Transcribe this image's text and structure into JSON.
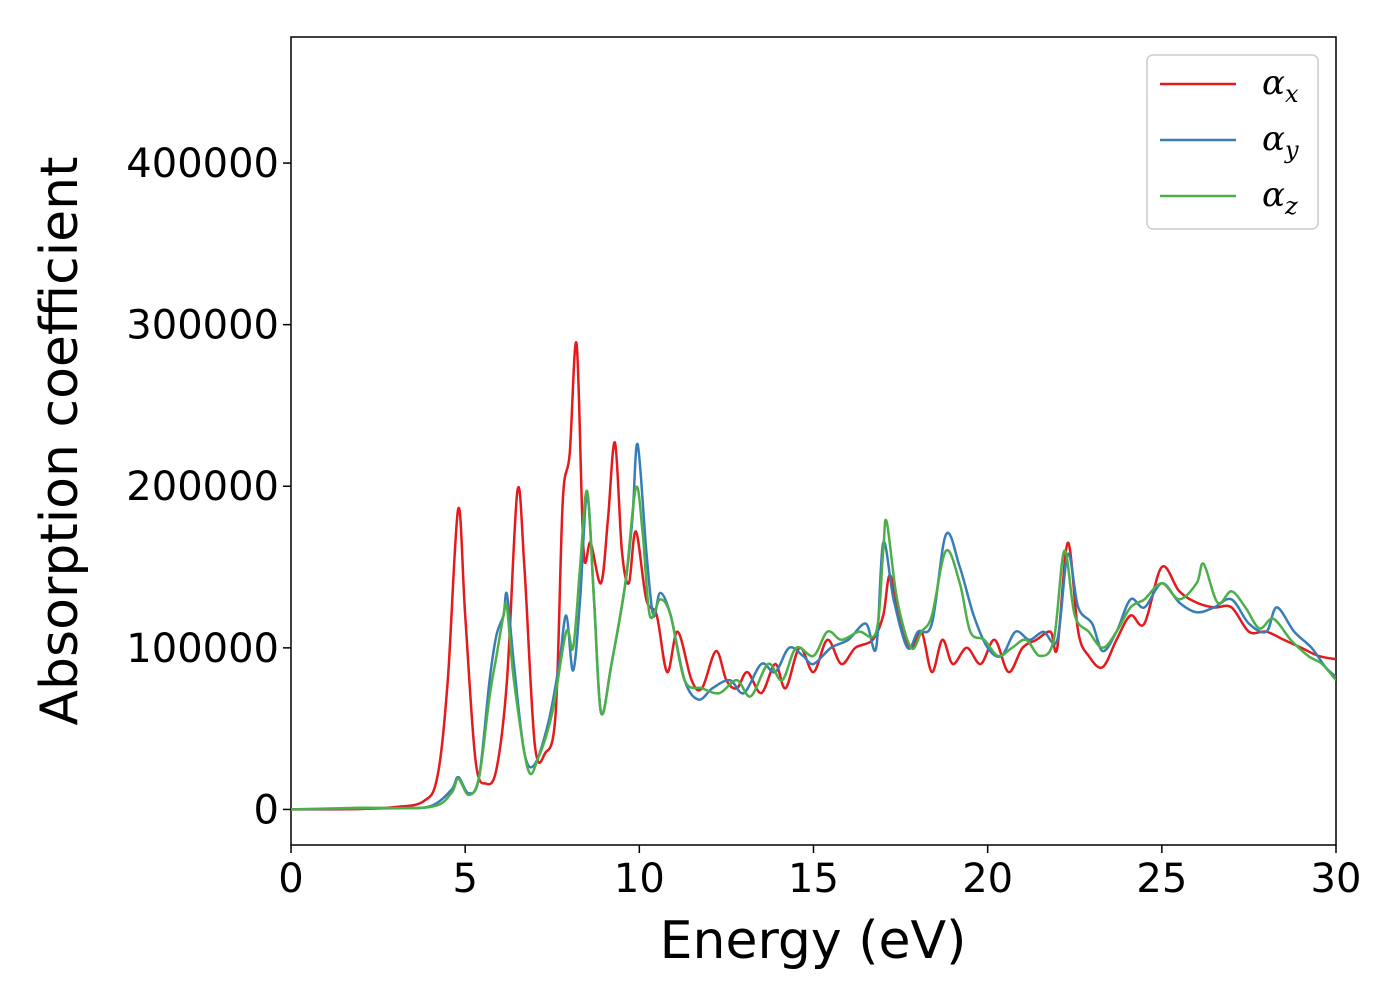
{
  "chart_data": {
    "type": "line",
    "title": "",
    "xlabel": "Energy (eV)",
    "ylabel": "Absorption coefficient",
    "xlim": [
      0,
      30
    ],
    "ylim": [
      -22000,
      478000
    ],
    "xticks": [
      "0",
      "5",
      "10",
      "15",
      "20",
      "25",
      "30"
    ],
    "yticks": [
      "0",
      "100000",
      "200000",
      "300000",
      "400000"
    ],
    "xtick_values": [
      0,
      5,
      10,
      15,
      20,
      25,
      30
    ],
    "ytick_values": [
      0,
      100000,
      200000,
      300000,
      400000
    ],
    "grid": false,
    "legend_position": "top-right",
    "series": [
      {
        "symbol": "α",
        "sub": "x",
        "color": "#e41a1c",
        "points": [
          [
            0,
            0
          ],
          [
            2,
            300
          ],
          [
            3,
            1500
          ],
          [
            3.8,
            5000
          ],
          [
            4.2,
            20000
          ],
          [
            4.5,
            80000
          ],
          [
            4.8,
            186000
          ],
          [
            5.0,
            120000
          ],
          [
            5.3,
            30000
          ],
          [
            5.6,
            16000
          ],
          [
            5.9,
            25000
          ],
          [
            6.2,
            80000
          ],
          [
            6.5,
            197000
          ],
          [
            6.7,
            150000
          ],
          [
            7.0,
            40000
          ],
          [
            7.3,
            35000
          ],
          [
            7.6,
            60000
          ],
          [
            7.8,
            190000
          ],
          [
            8.0,
            220000
          ],
          [
            8.2,
            288000
          ],
          [
            8.4,
            160000
          ],
          [
            8.6,
            165000
          ],
          [
            8.9,
            140000
          ],
          [
            9.1,
            180000
          ],
          [
            9.3,
            227000
          ],
          [
            9.5,
            160000
          ],
          [
            9.7,
            140000
          ],
          [
            9.9,
            172000
          ],
          [
            10.2,
            130000
          ],
          [
            10.5,
            120000
          ],
          [
            10.8,
            85000
          ],
          [
            11.1,
            110000
          ],
          [
            11.5,
            80000
          ],
          [
            11.8,
            75000
          ],
          [
            12.2,
            98000
          ],
          [
            12.5,
            80000
          ],
          [
            12.8,
            75000
          ],
          [
            13.1,
            85000
          ],
          [
            13.5,
            72000
          ],
          [
            13.9,
            90000
          ],
          [
            14.2,
            75000
          ],
          [
            14.6,
            100000
          ],
          [
            15.0,
            85000
          ],
          [
            15.4,
            105000
          ],
          [
            15.8,
            90000
          ],
          [
            16.2,
            100000
          ],
          [
            16.7,
            105000
          ],
          [
            17.0,
            120000
          ],
          [
            17.2,
            145000
          ],
          [
            17.5,
            115000
          ],
          [
            17.8,
            100000
          ],
          [
            18.1,
            110000
          ],
          [
            18.4,
            85000
          ],
          [
            18.7,
            105000
          ],
          [
            19.0,
            90000
          ],
          [
            19.4,
            100000
          ],
          [
            19.8,
            90000
          ],
          [
            20.2,
            105000
          ],
          [
            20.6,
            85000
          ],
          [
            21.0,
            100000
          ],
          [
            21.4,
            105000
          ],
          [
            21.8,
            110000
          ],
          [
            22.0,
            100000
          ],
          [
            22.3,
            165000
          ],
          [
            22.6,
            110000
          ],
          [
            22.9,
            95000
          ],
          [
            23.3,
            88000
          ],
          [
            23.7,
            105000
          ],
          [
            24.1,
            120000
          ],
          [
            24.5,
            115000
          ],
          [
            25.0,
            150000
          ],
          [
            25.5,
            135000
          ],
          [
            26.0,
            128000
          ],
          [
            26.5,
            125000
          ],
          [
            27.0,
            125000
          ],
          [
            27.5,
            110000
          ],
          [
            28.0,
            110000
          ],
          [
            28.5,
            105000
          ],
          [
            29.0,
            100000
          ],
          [
            29.5,
            95000
          ],
          [
            30,
            93000
          ]
        ]
      },
      {
        "symbol": "α",
        "sub": "y",
        "color": "#377eb8",
        "points": [
          [
            0,
            0
          ],
          [
            3,
            800
          ],
          [
            4.0,
            2000
          ],
          [
            4.6,
            12000
          ],
          [
            4.8,
            20000
          ],
          [
            5.1,
            10000
          ],
          [
            5.4,
            20000
          ],
          [
            5.7,
            80000
          ],
          [
            5.9,
            108000
          ],
          [
            6.1,
            120000
          ],
          [
            6.2,
            133000
          ],
          [
            6.4,
            90000
          ],
          [
            6.7,
            35000
          ],
          [
            7.0,
            28000
          ],
          [
            7.4,
            55000
          ],
          [
            7.7,
            90000
          ],
          [
            7.9,
            120000
          ],
          [
            8.1,
            86000
          ],
          [
            8.3,
            130000
          ],
          [
            8.5,
            195000
          ],
          [
            8.7,
            130000
          ],
          [
            8.9,
            60000
          ],
          [
            9.2,
            90000
          ],
          [
            9.6,
            140000
          ],
          [
            9.8,
            180000
          ],
          [
            9.95,
            226000
          ],
          [
            10.2,
            160000
          ],
          [
            10.4,
            120000
          ],
          [
            10.6,
            134000
          ],
          [
            10.9,
            120000
          ],
          [
            11.3,
            80000
          ],
          [
            11.7,
            68000
          ],
          [
            12.1,
            75000
          ],
          [
            12.6,
            80000
          ],
          [
            13.0,
            72000
          ],
          [
            13.5,
            90000
          ],
          [
            13.9,
            85000
          ],
          [
            14.3,
            100000
          ],
          [
            14.7,
            95000
          ],
          [
            15.0,
            90000
          ],
          [
            15.5,
            100000
          ],
          [
            16.0,
            105000
          ],
          [
            16.5,
            115000
          ],
          [
            16.8,
            100000
          ],
          [
            17.0,
            165000
          ],
          [
            17.3,
            130000
          ],
          [
            17.7,
            100000
          ],
          [
            18.0,
            110000
          ],
          [
            18.4,
            115000
          ],
          [
            18.8,
            170000
          ],
          [
            19.2,
            150000
          ],
          [
            19.6,
            120000
          ],
          [
            20.0,
            100000
          ],
          [
            20.4,
            95000
          ],
          [
            20.8,
            110000
          ],
          [
            21.2,
            105000
          ],
          [
            21.6,
            110000
          ],
          [
            22.0,
            105000
          ],
          [
            22.3,
            158000
          ],
          [
            22.6,
            125000
          ],
          [
            23.0,
            115000
          ],
          [
            23.3,
            98000
          ],
          [
            23.7,
            110000
          ],
          [
            24.1,
            130000
          ],
          [
            24.5,
            125000
          ],
          [
            25.0,
            140000
          ],
          [
            25.5,
            128000
          ],
          [
            26.0,
            122000
          ],
          [
            26.5,
            125000
          ],
          [
            27.0,
            130000
          ],
          [
            27.5,
            115000
          ],
          [
            28.0,
            110000
          ],
          [
            28.3,
            125000
          ],
          [
            28.8,
            110000
          ],
          [
            29.3,
            100000
          ],
          [
            29.7,
            88000
          ],
          [
            30,
            82000
          ]
        ]
      },
      {
        "symbol": "α",
        "sub": "z",
        "color": "#4daf4a",
        "points": [
          [
            0,
            0
          ],
          [
            2,
            1000
          ],
          [
            4.0,
            1500
          ],
          [
            4.6,
            10000
          ],
          [
            4.8,
            19000
          ],
          [
            5.1,
            9000
          ],
          [
            5.4,
            20000
          ],
          [
            5.7,
            70000
          ],
          [
            5.9,
            95000
          ],
          [
            6.1,
            120000
          ],
          [
            6.2,
            125000
          ],
          [
            6.4,
            80000
          ],
          [
            6.8,
            25000
          ],
          [
            7.1,
            32000
          ],
          [
            7.5,
            60000
          ],
          [
            7.9,
            110000
          ],
          [
            8.1,
            100000
          ],
          [
            8.3,
            150000
          ],
          [
            8.5,
            197000
          ],
          [
            8.7,
            130000
          ],
          [
            8.9,
            60000
          ],
          [
            9.2,
            90000
          ],
          [
            9.6,
            140000
          ],
          [
            9.9,
            199000
          ],
          [
            10.1,
            170000
          ],
          [
            10.3,
            120000
          ],
          [
            10.6,
            130000
          ],
          [
            10.9,
            120000
          ],
          [
            11.3,
            80000
          ],
          [
            11.8,
            75000
          ],
          [
            12.3,
            72000
          ],
          [
            12.8,
            80000
          ],
          [
            13.2,
            70000
          ],
          [
            13.7,
            90000
          ],
          [
            14.1,
            80000
          ],
          [
            14.5,
            100000
          ],
          [
            15.0,
            95000
          ],
          [
            15.4,
            110000
          ],
          [
            15.8,
            105000
          ],
          [
            16.3,
            110000
          ],
          [
            16.8,
            110000
          ],
          [
            17.0,
            160000
          ],
          [
            17.1,
            178000
          ],
          [
            17.4,
            130000
          ],
          [
            17.8,
            100000
          ],
          [
            18.1,
            110000
          ],
          [
            18.4,
            120000
          ],
          [
            18.8,
            160000
          ],
          [
            19.2,
            140000
          ],
          [
            19.5,
            110000
          ],
          [
            19.9,
            105000
          ],
          [
            20.3,
            95000
          ],
          [
            20.7,
            100000
          ],
          [
            21.1,
            105000
          ],
          [
            21.5,
            95000
          ],
          [
            21.9,
            105000
          ],
          [
            22.2,
            160000
          ],
          [
            22.5,
            120000
          ],
          [
            22.9,
            110000
          ],
          [
            23.3,
            100000
          ],
          [
            23.7,
            110000
          ],
          [
            24.1,
            125000
          ],
          [
            24.5,
            130000
          ],
          [
            25.0,
            140000
          ],
          [
            25.5,
            130000
          ],
          [
            26.0,
            140000
          ],
          [
            26.2,
            152000
          ],
          [
            26.6,
            128000
          ],
          [
            27.0,
            135000
          ],
          [
            27.4,
            125000
          ],
          [
            27.8,
            112000
          ],
          [
            28.2,
            118000
          ],
          [
            28.7,
            105000
          ],
          [
            29.2,
            95000
          ],
          [
            29.6,
            90000
          ],
          [
            30,
            80000
          ]
        ]
      }
    ]
  }
}
